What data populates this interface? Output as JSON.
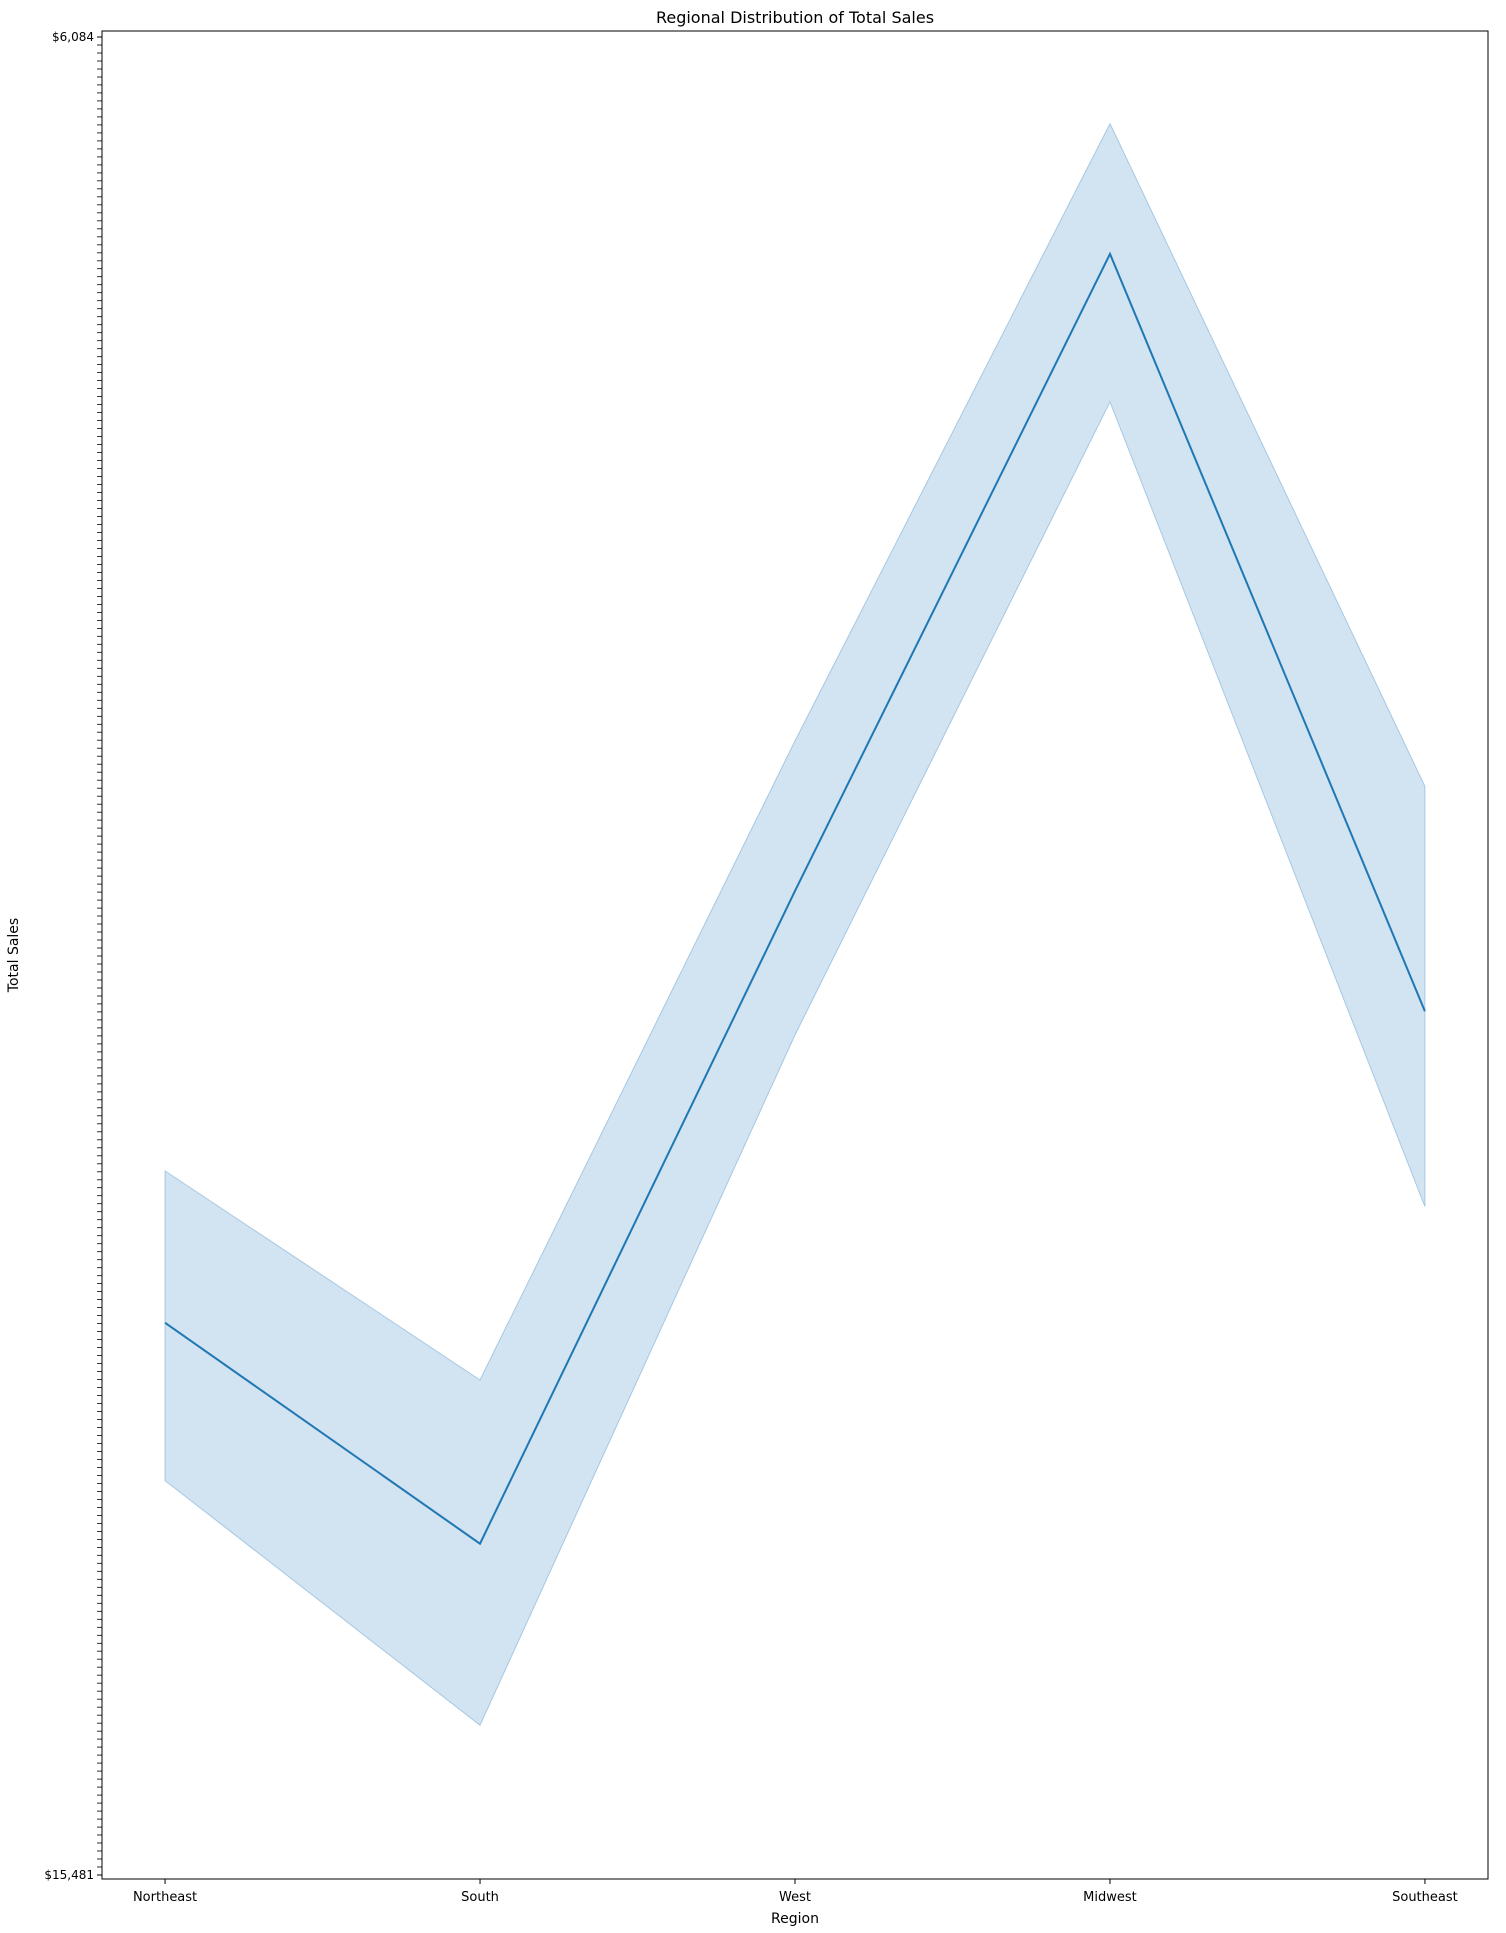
{
  "chart_data": {
    "type": "line",
    "title": "Regional Distribution of Total Sales",
    "xlabel": "Region",
    "ylabel": "Total Sales",
    "categories": [
      "Northeast",
      "South",
      "West",
      "Midwest",
      "Southeast"
    ],
    "series": [
      {
        "values": [
          282,
          170,
          501,
          824,
          440
        ],
        "ci_lower": [
          202,
          78,
          428,
          749,
          341
        ],
        "ci_upper": [
          359,
          253,
          577,
          890,
          554
        ],
        "color": "#1f77b4",
        "band_color": "#a6c8e3"
      }
    ],
    "ylim": [
      0,
      937
    ],
    "y_tick_labels": [
      "$6,084",
      "$15,481"
    ],
    "legend": "none",
    "grid": false
  }
}
